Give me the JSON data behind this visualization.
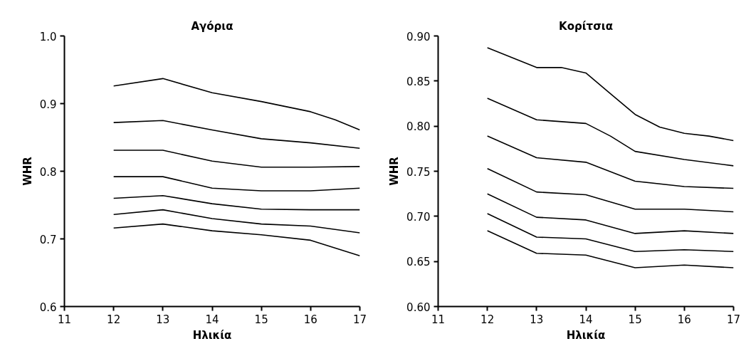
{
  "chart_data": [
    {
      "type": "line",
      "title": "Αγόρια",
      "xlabel": "Ηλικία",
      "ylabel": "WHR",
      "line_style": "solid",
      "x": [
        12,
        13,
        14,
        15,
        16,
        17
      ],
      "xlim": [
        11,
        17
      ],
      "xticks": [
        11,
        12,
        13,
        14,
        15,
        16,
        17
      ],
      "ylim": [
        0.6,
        1.0
      ],
      "yticks": [
        {
          "value": 0.6,
          "label": "0.6"
        },
        0.7,
        0.8,
        0.9,
        {
          "value": 1.0,
          "label": "1.0"
        }
      ],
      "series": [
        {
          "color": "#000000",
          "x": [
            12,
            13,
            14,
            15,
            16,
            16.5,
            17
          ],
          "values": [
            0.926,
            0.937,
            0.916,
            0.903,
            0.888,
            0.876,
            0.861
          ]
        },
        {
          "color": "#000000",
          "values": [
            0.872,
            0.875,
            0.861,
            0.848,
            0.842,
            0.834
          ]
        },
        {
          "color": "#000000",
          "values": [
            0.831,
            0.831,
            0.815,
            0.806,
            0.806,
            0.807
          ]
        },
        {
          "color": "#000000",
          "values": [
            0.792,
            0.792,
            0.775,
            0.771,
            0.771,
            0.775
          ]
        },
        {
          "color": "#000000",
          "values": [
            0.76,
            0.764,
            0.752,
            0.744,
            0.743,
            0.743
          ]
        },
        {
          "color": "#000000",
          "values": [
            0.736,
            0.743,
            0.73,
            0.722,
            0.719,
            0.709
          ]
        },
        {
          "color": "#000000",
          "values": [
            0.716,
            0.722,
            0.712,
            0.706,
            0.698,
            0.675
          ]
        }
      ]
    },
    {
      "type": "line",
      "title": "Κορίτσια",
      "xlabel": "Ηλικία",
      "ylabel": "WHR",
      "line_style": "solid",
      "x": [
        12,
        13,
        14,
        15,
        16,
        17
      ],
      "xlim": [
        11,
        17
      ],
      "xticks": [
        11,
        12,
        13,
        14,
        15,
        16,
        17
      ],
      "ylim": [
        0.6,
        0.9
      ],
      "yticks": [
        {
          "value": 0.6,
          "label": "0.60"
        },
        {
          "value": 0.65,
          "label": "0.65"
        },
        {
          "value": 0.7,
          "label": "0.70"
        },
        0.75,
        {
          "value": 0.8,
          "label": "0.80"
        },
        0.85,
        {
          "value": 0.9,
          "label": "0.90"
        }
      ],
      "series": [
        {
          "color": "#000000",
          "x": [
            12,
            13,
            13.5,
            14,
            14.5,
            15,
            15.5,
            16,
            16.5,
            17
          ],
          "values": [
            0.887,
            0.865,
            0.865,
            0.859,
            0.836,
            0.813,
            0.799,
            0.792,
            0.789,
            0.784
          ]
        },
        {
          "color": "#000000",
          "x": [
            12,
            13,
            14,
            14.5,
            15,
            16,
            17
          ],
          "values": [
            0.831,
            0.807,
            0.803,
            0.789,
            0.772,
            0.763,
            0.756
          ]
        },
        {
          "color": "#000000",
          "values": [
            0.789,
            0.765,
            0.76,
            0.739,
            0.733,
            0.731
          ]
        },
        {
          "color": "#000000",
          "values": [
            0.753,
            0.727,
            0.724,
            0.708,
            0.708,
            0.705
          ]
        },
        {
          "color": "#000000",
          "values": [
            0.725,
            0.699,
            0.696,
            0.681,
            0.684,
            0.681
          ]
        },
        {
          "color": "#000000",
          "values": [
            0.703,
            0.677,
            0.675,
            0.661,
            0.663,
            0.661
          ]
        },
        {
          "color": "#000000",
          "values": [
            0.684,
            0.659,
            0.657,
            0.643,
            0.646,
            0.643
          ]
        }
      ]
    }
  ]
}
